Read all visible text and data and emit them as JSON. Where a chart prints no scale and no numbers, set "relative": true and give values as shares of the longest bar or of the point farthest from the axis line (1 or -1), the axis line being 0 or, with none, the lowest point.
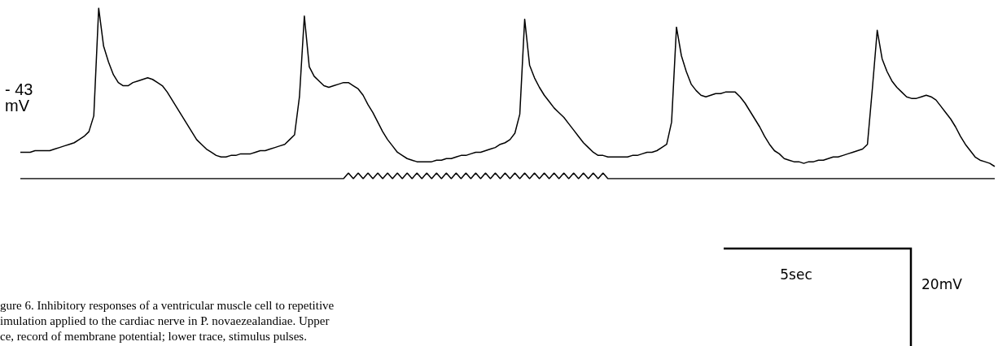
{
  "chart_data": [
    {
      "type": "line",
      "relative": true,
      "categories": [
        null,
        null,
        null,
        null,
        null,
        null,
        null,
        null,
        null,
        null,
        null,
        null,
        null,
        null,
        null,
        null,
        null,
        null,
        null,
        null,
        null,
        null,
        null,
        null,
        null,
        null,
        null,
        null,
        null,
        null,
        null,
        null,
        null,
        null,
        null,
        null,
        null,
        null,
        null,
        null,
        null,
        null,
        null,
        null,
        null,
        null,
        null,
        null,
        null,
        null,
        null,
        null,
        null,
        null,
        null,
        null,
        null,
        null,
        null,
        null,
        null,
        null,
        null,
        null,
        null,
        null,
        null,
        null,
        null,
        null,
        null,
        null,
        null,
        null,
        null,
        null,
        null,
        null,
        null,
        null,
        null,
        null,
        null,
        null,
        null,
        null,
        null,
        null,
        null,
        null,
        null,
        null,
        null,
        null,
        null,
        null,
        null,
        null,
        null,
        null,
        null,
        null,
        null,
        null,
        null,
        null,
        null,
        null,
        null,
        null,
        null,
        null,
        null,
        null,
        null,
        null,
        null,
        null,
        null,
        null,
        null,
        null,
        null,
        null,
        null,
        null,
        null,
        null,
        null,
        null,
        null,
        null,
        null,
        null,
        null,
        null,
        null,
        null,
        null,
        null,
        null,
        null,
        null,
        null,
        null,
        null,
        null,
        null,
        null,
        null,
        null,
        null,
        null,
        null,
        null,
        null,
        null,
        null,
        null,
        null,
        null,
        null,
        null,
        null,
        null,
        null,
        null,
        null,
        null,
        null,
        null,
        null,
        null,
        null,
        null,
        null,
        null,
        null,
        null,
        null,
        null,
        null,
        null,
        null,
        null,
        null,
        null,
        null,
        null,
        null,
        null,
        null,
        null,
        null,
        null,
        null,
        null,
        null,
        null,
        null
      ],
      "series": [
        {
          "color": "#000000",
          "values": [
            0.09,
            0.09,
            0.09,
            0.1,
            0.1,
            0.1,
            0.1,
            0.11,
            0.12,
            0.13,
            0.14,
            0.15,
            0.17,
            0.19,
            0.22,
            0.32,
            1.0,
            0.76,
            0.66,
            0.58,
            0.53,
            0.51,
            0.51,
            0.53,
            0.54,
            0.55,
            0.56,
            0.55,
            0.53,
            0.51,
            0.47,
            0.42,
            0.37,
            0.32,
            0.27,
            0.22,
            0.17,
            0.14,
            0.11,
            0.09,
            0.07,
            0.06,
            0.06,
            0.07,
            0.07,
            0.08,
            0.08,
            0.08,
            0.09,
            0.1,
            0.1,
            0.11,
            0.12,
            0.13,
            0.14,
            0.17,
            0.2,
            0.44,
            0.95,
            0.63,
            0.57,
            0.54,
            0.51,
            0.5,
            0.51,
            0.52,
            0.53,
            0.53,
            0.51,
            0.49,
            0.45,
            0.39,
            0.34,
            0.28,
            0.22,
            0.17,
            0.13,
            0.09,
            0.07,
            0.05,
            0.04,
            0.03,
            0.03,
            0.03,
            0.03,
            0.04,
            0.04,
            0.05,
            0.05,
            0.06,
            0.07,
            0.07,
            0.08,
            0.09,
            0.09,
            0.1,
            0.11,
            0.12,
            0.14,
            0.15,
            0.17,
            0.21,
            0.33,
            0.93,
            0.64,
            0.56,
            0.5,
            0.45,
            0.41,
            0.37,
            0.34,
            0.31,
            0.27,
            0.23,
            0.19,
            0.15,
            0.12,
            0.09,
            0.07,
            0.07,
            0.06,
            0.06,
            0.06,
            0.06,
            0.06,
            0.07,
            0.07,
            0.08,
            0.09,
            0.09,
            0.1,
            0.12,
            0.14,
            0.28,
            0.88,
            0.7,
            0.6,
            0.52,
            0.48,
            0.45,
            0.44,
            0.45,
            0.46,
            0.46,
            0.47,
            0.47,
            0.47,
            0.44,
            0.4,
            0.35,
            0.3,
            0.25,
            0.19,
            0.14,
            0.1,
            0.08,
            0.05,
            0.04,
            0.03,
            0.03,
            0.02,
            0.03,
            0.03,
            0.04,
            0.04,
            0.05,
            0.06,
            0.06,
            0.07,
            0.08,
            0.09,
            0.1,
            0.11,
            0.14,
            0.49,
            0.86,
            0.68,
            0.6,
            0.54,
            0.5,
            0.47,
            0.44,
            0.43,
            0.43,
            0.44,
            0.45,
            0.44,
            0.42,
            0.38,
            0.34,
            0.3,
            0.25,
            0.19,
            0.14,
            0.1,
            0.06,
            0.04,
            0.03,
            0.02,
            0
          ]
        }
      ],
      "annotations": [
        "- 43\nmV",
        "5sec",
        "20mV",
        "gure 6. Inhibitory responses of a ventricular muscle cell to repetitive\nimulation applied to the cardiac nerve in P. novaezealandiae. Upper\nce, record of membrane potential; lower trace, stimulus pulses."
      ]
    },
    {
      "type": "line",
      "relative": true,
      "categories": [
        null,
        null,
        null,
        null,
        null,
        null,
        null,
        null,
        null,
        null,
        null,
        null,
        null,
        null,
        null,
        null,
        null,
        null,
        null,
        null,
        null,
        null,
        null,
        null,
        null,
        null,
        null,
        null,
        null,
        null,
        null,
        null,
        null,
        null,
        null,
        null,
        null,
        null,
        null,
        null,
        null,
        null,
        null,
        null,
        null,
        null,
        null,
        null,
        null,
        null,
        null,
        null,
        null,
        null,
        null,
        null,
        null,
        null,
        null,
        null,
        null,
        null,
        null,
        null,
        null,
        null,
        null,
        null,
        null,
        null,
        null,
        null,
        null,
        null,
        null,
        null,
        null,
        null,
        null,
        null,
        null,
        null,
        null,
        null,
        null,
        null,
        null,
        null,
        null,
        null,
        null,
        null,
        null,
        null,
        null,
        null,
        null,
        null,
        null,
        null,
        null,
        null,
        null,
        null,
        null,
        null,
        null,
        null,
        null,
        null,
        null,
        null,
        null,
        null,
        null,
        null,
        null,
        null,
        null,
        null,
        null,
        null,
        null,
        null,
        null,
        null,
        null,
        null,
        null,
        null,
        null,
        null,
        null,
        null,
        null,
        null,
        null,
        null,
        null,
        null,
        null,
        null,
        null,
        null,
        null,
        null,
        null,
        null,
        null,
        null,
        null,
        null,
        null,
        null,
        null,
        null,
        null,
        null,
        null,
        null,
        null,
        null,
        null,
        null,
        null,
        null,
        null,
        null,
        null,
        null,
        null,
        null,
        null,
        null,
        null,
        null,
        null,
        null,
        null,
        null,
        null,
        null,
        null,
        null,
        null,
        null,
        null,
        null,
        null,
        null,
        null,
        null,
        null,
        null,
        null,
        null,
        null,
        null,
        null,
        null
      ],
      "series": [
        {
          "color": "#000000",
          "values": [
            0,
            0,
            0,
            0,
            0,
            0,
            0,
            0,
            0,
            0,
            0,
            0,
            0,
            0,
            0,
            0,
            0,
            0,
            0,
            0,
            0,
            0,
            0,
            0,
            0,
            0,
            0,
            0,
            0,
            0,
            0,
            0,
            0,
            0,
            0,
            0,
            0,
            0,
            0,
            0,
            0,
            0,
            0,
            0,
            0,
            0,
            0,
            0,
            0,
            0,
            0,
            0,
            0,
            0,
            0,
            0,
            0,
            0,
            0,
            0,
            0,
            0,
            0,
            0,
            0,
            0,
            0,
            1,
            0,
            1,
            0,
            1,
            0,
            1,
            0,
            1,
            0,
            1,
            0,
            1,
            0,
            1,
            0,
            1,
            0,
            1,
            0,
            1,
            0,
            1,
            0,
            1,
            0,
            1,
            0,
            1,
            0,
            1,
            0,
            1,
            0,
            1,
            0,
            1,
            0,
            1,
            0,
            1,
            0,
            1,
            0,
            1,
            0,
            1,
            0,
            1,
            0,
            1,
            0,
            1,
            0,
            0,
            0,
            0,
            0,
            0,
            0,
            0,
            0,
            0,
            0,
            0,
            0,
            0,
            0,
            0,
            0,
            0,
            0,
            0,
            0,
            0,
            0,
            0,
            0,
            0,
            0,
            0,
            0,
            0,
            0,
            0,
            0,
            0,
            0,
            0,
            0,
            0,
            0,
            0,
            0,
            0,
            0,
            0,
            0,
            0,
            0,
            0,
            0,
            0,
            0,
            0,
            0,
            0,
            0,
            0,
            0,
            0,
            0,
            0,
            0,
            0,
            0,
            0,
            0,
            0,
            0,
            0,
            0,
            0,
            0,
            0,
            0,
            0,
            0,
            0,
            0,
            0,
            0,
            0
          ]
        }
      ]
    }
  ]
}
